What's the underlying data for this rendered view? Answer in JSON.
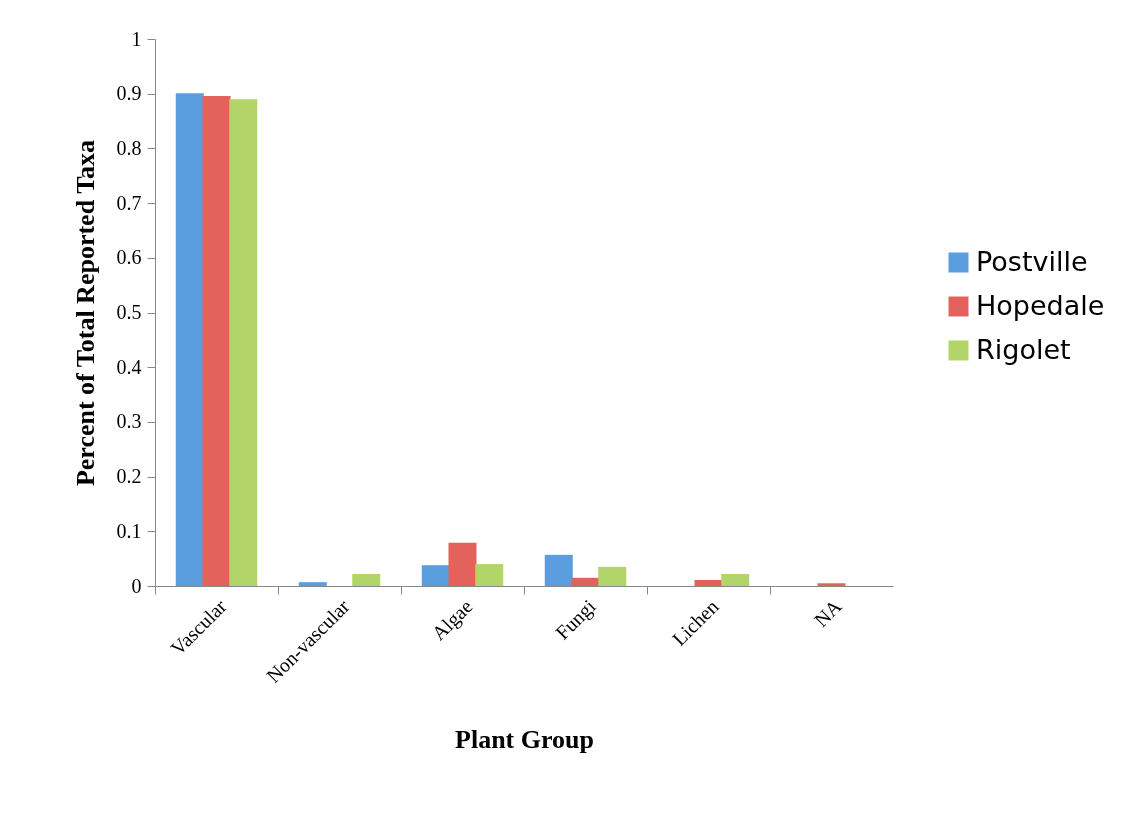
{
  "chart_data": {
    "type": "bar",
    "xlabel": "Plant Group",
    "ylabel": "Percent of Total Reported Taxa",
    "categories": [
      "Vascular",
      "Non-vascular",
      "Algae",
      "Fungi",
      "Lichen",
      "NA"
    ],
    "series": [
      {
        "name": "Postville",
        "color": "#5b9ee0",
        "values": [
          0.901,
          0.007,
          0.038,
          0.057,
          0,
          0
        ]
      },
      {
        "name": "Hopedale",
        "color": "#e3625c",
        "values": [
          0.896,
          0,
          0.079,
          0.015,
          0.011,
          0.005
        ]
      },
      {
        "name": "Rigolet",
        "color": "#b3d468",
        "values": [
          0.89,
          0.022,
          0.04,
          0.035,
          0.022,
          0
        ]
      }
    ],
    "ylim": [
      0,
      1
    ],
    "yticks": [
      0,
      0.1,
      0.2,
      0.3,
      0.4,
      0.5,
      0.6,
      0.7,
      0.8,
      0.9,
      1
    ],
    "grid": false,
    "legend": "right"
  }
}
